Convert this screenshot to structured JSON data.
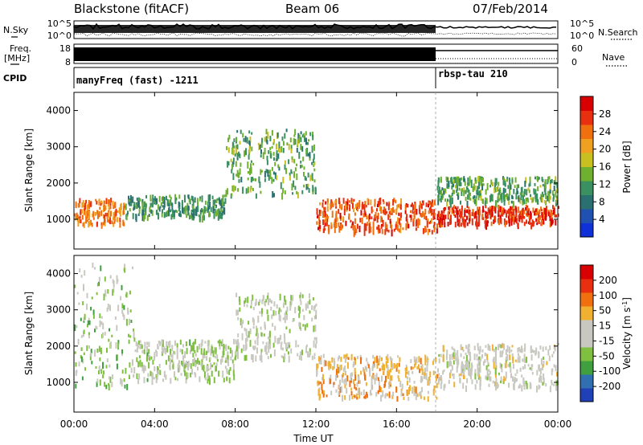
{
  "header": {
    "station": "Blackstone (fitACF)",
    "beam": "Beam 06",
    "date": "07/Feb/2014"
  },
  "side_labels": {
    "nsky": "N.Sky",
    "nsearch": "N.Search",
    "freq": "Freq.",
    "freq_unit": "[MHz]",
    "nave": "Nave",
    "cpid": "CPID"
  },
  "cpid_modes": [
    {
      "label": "manyFreq (fast) -1211",
      "start_hour": 0,
      "end_hour": 18.0
    },
    {
      "label": "rbsp-tau 210",
      "start_hour": 18.0,
      "end_hour": 24.0
    }
  ],
  "noise_panel": {
    "left_ticks": [
      "10^5",
      "10^0"
    ],
    "right_ticks": [
      "10^5",
      "10^0"
    ]
  },
  "freq_panel": {
    "left_ticks": [
      "18",
      "8"
    ],
    "right_ticks": [
      "60",
      "0"
    ]
  },
  "x_axis": {
    "label": "Time UT",
    "ticks": [
      "00:00",
      "04:00",
      "08:00",
      "12:00",
      "16:00",
      "20:00",
      "00:00"
    ],
    "range_hours": [
      0,
      24
    ]
  },
  "colors": {
    "power_scale": [
      "#1030d8",
      "#2050b0",
      "#2a7070",
      "#3a9060",
      "#70b030",
      "#c8c020",
      "#f0a020",
      "#f07010",
      "#e83010",
      "#d80000"
    ],
    "velocity_scale": [
      "#2040b8",
      "#3070b0",
      "#40a040",
      "#80c040",
      "#c8c8c0",
      "#c8c8c0",
      "#f0b030",
      "#f07010",
      "#e83010",
      "#d80000"
    ]
  },
  "chart_data": [
    {
      "type": "heatmap",
      "title": "",
      "ylabel": "Slant Range [km]",
      "xlabel": "",
      "ylim": [
        180,
        4500
      ],
      "yticks": [
        1000,
        2000,
        3000,
        4000
      ],
      "xlim": [
        0,
        24
      ],
      "colorbar": {
        "label": "Power [dB]",
        "ticks": [
          "4",
          "8",
          "12",
          "16",
          "20",
          "24",
          "28"
        ],
        "range": [
          0,
          30
        ]
      },
      "features": [
        {
          "hours": [
            0,
            2.5
          ],
          "range_km": [
            900,
            1600
          ],
          "power_db": 22
        },
        {
          "hours": [
            2.5,
            7.5
          ],
          "range_km": [
            1100,
            1700
          ],
          "power_db": 10
        },
        {
          "hours": [
            7.5,
            12.0
          ],
          "range_km": [
            1700,
            3500
          ],
          "power_db": 12
        },
        {
          "hours": [
            12.0,
            18.0
          ],
          "range_km": [
            700,
            1600
          ],
          "power_db": 24
        },
        {
          "hours": [
            18.0,
            24.0
          ],
          "range_km": [
            900,
            1400
          ],
          "power_db": 26
        },
        {
          "hours": [
            18.0,
            24.0
          ],
          "range_km": [
            1500,
            2200
          ],
          "power_db": 12
        }
      ]
    },
    {
      "type": "heatmap",
      "title": "",
      "ylabel": "Slant Range [km]",
      "xlabel": "Time UT",
      "ylim": [
        180,
        4500
      ],
      "yticks": [
        1000,
        2000,
        3000,
        4000
      ],
      "xlim": [
        0,
        24
      ],
      "colorbar": {
        "label": "Velocity [m s^-1]",
        "ticks": [
          "-200",
          "-100",
          "-50",
          "-15",
          "15",
          "50",
          "100",
          "200"
        ],
        "range": [
          -250,
          250
        ]
      },
      "features": [
        {
          "hours": [
            0,
            3.0
          ],
          "range_km": [
            900,
            4300
          ],
          "velocity_ms": -60
        },
        {
          "hours": [
            3.0,
            8.0
          ],
          "range_km": [
            1100,
            2200
          ],
          "velocity_ms": -40
        },
        {
          "hours": [
            8.0,
            12.0
          ],
          "range_km": [
            1700,
            3500
          ],
          "velocity_ms": -20
        },
        {
          "hours": [
            12.0,
            18.0
          ],
          "range_km": [
            600,
            1800
          ],
          "velocity_ms": 60
        },
        {
          "hours": [
            18.0,
            24.0
          ],
          "range_km": [
            900,
            2100
          ],
          "velocity_ms": 0
        }
      ]
    }
  ]
}
